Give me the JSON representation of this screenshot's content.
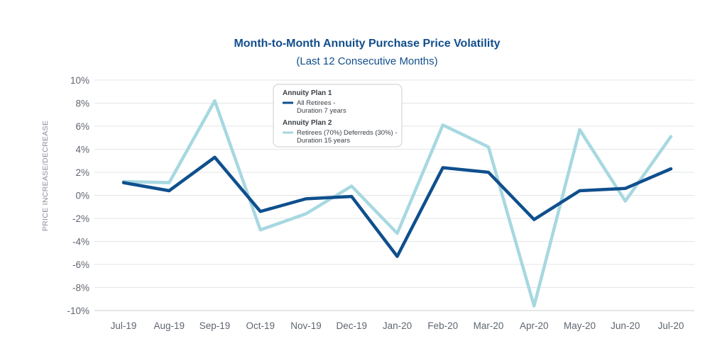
{
  "colors": {
    "plan1": "#0f4f8d",
    "plan2": "#a7d8e0",
    "title": "#124e8c",
    "grid": "#e3e5e8",
    "axis": "#c9ccd0"
  },
  "chart_data": {
    "type": "line",
    "title": "Month-to-Month Annuity Purchase Price Volatility",
    "subtitle": "(Last 12 Consecutive Months)",
    "xlabel": "",
    "ylabel": "PRICE INCREASE/DECREASE",
    "ylim": [
      -10,
      10
    ],
    "yticks": [
      10,
      8,
      6,
      4,
      2,
      0,
      -2,
      -4,
      -6,
      -8,
      -10
    ],
    "ytick_labels": [
      "10%",
      "8%",
      "6%",
      "4%",
      "2%",
      "0%",
      "-2%",
      "-4%",
      "-6%",
      "-8%",
      "-10%"
    ],
    "grid": true,
    "legend_position": "top-center",
    "categories": [
      "Jul-19",
      "Aug-19",
      "Sep-19",
      "Oct-19",
      "Nov-19",
      "Dec-19",
      "Jan-20",
      "Feb-20",
      "Mar-20",
      "Apr-20",
      "May-20",
      "Jun-20",
      "Jul-20"
    ],
    "series": [
      {
        "name": "Annuity Plan 1",
        "legend_lines": [
          "All Retirees -",
          "Duration 7 years"
        ],
        "values": [
          1.1,
          0.4,
          3.3,
          -1.4,
          -0.3,
          -0.1,
          -5.3,
          2.4,
          2.0,
          -2.1,
          0.4,
          0.6,
          2.3
        ]
      },
      {
        "name": "Annuity Plan 2",
        "legend_lines": [
          "Retirees (70%) Deferreds (30%) -",
          "Duration 15 years"
        ],
        "values": [
          1.2,
          1.1,
          8.2,
          -3.0,
          -1.6,
          0.8,
          -3.3,
          6.1,
          4.2,
          -9.6,
          5.7,
          -0.5,
          5.1
        ]
      }
    ]
  }
}
